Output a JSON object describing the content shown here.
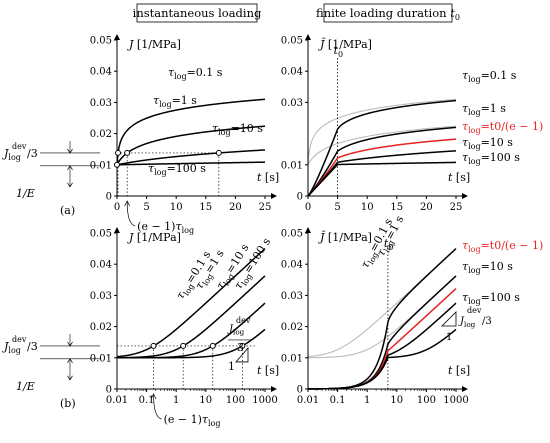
{
  "headers": {
    "left": "instantaneous loading",
    "right": "finite loading duration t0"
  },
  "row_labels": {
    "a": "(a)",
    "b": "(b)"
  },
  "side_labels": {
    "jdev": "J_log^dev/3",
    "inv_e": "1/E"
  },
  "annotations": {
    "e_minus_1": "(e − 1)τlog",
    "t0": "t0",
    "slope_label": "J_log^dev/3",
    "slope_den": "1"
  },
  "colors": {
    "primary": "#000000",
    "highlight": "#e8221f",
    "reference": "#bbbbbb"
  },
  "chart_data": [
    {
      "type": "line",
      "panel": "a-left",
      "title": "instantaneous loading",
      "ylabel": "J [1/MPa]",
      "xlabel": "t [s]",
      "xlim": [
        0,
        25
      ],
      "ylim": [
        0,
        0.05
      ],
      "xticks": [
        "0",
        "5",
        "10",
        "15",
        "20",
        "25"
      ],
      "yticks": [
        "0",
        "0.01",
        "0.02",
        "0.03",
        "0.04",
        "0.05"
      ],
      "series": [
        {
          "name": "τlog=0.1 s",
          "tau": 0.1
        },
        {
          "name": "τlog=1 s",
          "tau": 1
        },
        {
          "name": "τlog=10 s",
          "tau": 10
        },
        {
          "name": "τlog=100 s",
          "tau": 100
        }
      ]
    },
    {
      "type": "line",
      "panel": "a-right",
      "title": "finite loading duration t0",
      "ylabel": "J̄ [1/MPa]",
      "xlabel": "t [s]",
      "xlim": [
        0,
        25
      ],
      "ylim": [
        0,
        0.05
      ],
      "t0": 5,
      "xticks": [
        "0",
        "5",
        "10",
        "15",
        "20",
        "25"
      ],
      "yticks": [
        "0",
        "0.01",
        "0.03",
        "0.04",
        "0.05"
      ],
      "series": [
        {
          "name": "τlog=0.1 s",
          "tau": 0.1
        },
        {
          "name": "τlog=1 s",
          "tau": 1
        },
        {
          "name": "τlog = t0/(e − 1)",
          "tau": 2.91,
          "highlight": true
        },
        {
          "name": "τlog=10 s",
          "tau": 10
        },
        {
          "name": "τlog=100 s",
          "tau": 100
        }
      ]
    },
    {
      "type": "line",
      "panel": "b-left",
      "ylabel": "J [1/MPa]",
      "xlabel": "t [s]",
      "xscale": "log",
      "xlim": [
        0.01,
        1000
      ],
      "ylim": [
        0,
        0.05
      ],
      "xticks": [
        "0.01",
        "0.1",
        "1",
        "10",
        "100",
        "1000"
      ],
      "yticks": [
        "0",
        "0.01",
        "0.02",
        "0.03",
        "0.04",
        "0.05"
      ],
      "series": [
        {
          "name": "τlog=0.1 s",
          "tau": 0.1
        },
        {
          "name": "τlog=1 s",
          "tau": 1
        },
        {
          "name": "τlog=10 s",
          "tau": 10
        },
        {
          "name": "τlog=100 s",
          "tau": 100
        }
      ]
    },
    {
      "type": "line",
      "panel": "b-right",
      "ylabel": "J̄ [1/MPa]",
      "xlabel": "t [s]",
      "xscale": "log",
      "xlim": [
        0.01,
        1000
      ],
      "ylim": [
        0,
        0.05
      ],
      "t0": 5,
      "xticks": [
        "0.01",
        "0.1",
        "1",
        "10",
        "100",
        "1000"
      ],
      "yticks": [
        "0",
        "0.01",
        "0.02",
        "0.03",
        "0.04",
        "0.05"
      ],
      "series": [
        {
          "name": "τlog=0.1 s",
          "tau": 0.1
        },
        {
          "name": "τlog=1 s",
          "tau": 1
        },
        {
          "name": "τlog = t0/(e − 1)",
          "tau": 2.91,
          "highlight": true
        },
        {
          "name": "τlog=10 s",
          "tau": 10
        },
        {
          "name": "τlog=100 s",
          "tau": 100
        }
      ]
    }
  ]
}
